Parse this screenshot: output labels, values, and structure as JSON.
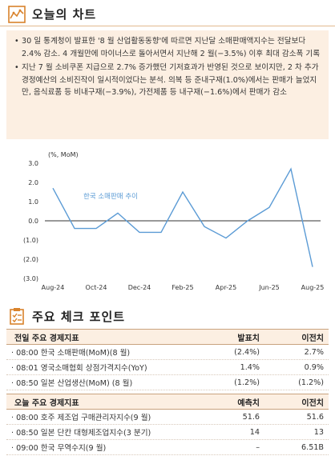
{
  "section1": {
    "title": "오늘의 차트",
    "icon": "line-chart-icon"
  },
  "paragraphs": [
    "30 일 통계청이 발표한 '8 월 산업활동동향'에 따르면 지난달 소매판매액지수는 전달보다 2.4% 감소. 4 개월만에 마이너스로 돌아서면서 지난해 2 월(−3.5%) 이후 최대 감소폭 기록",
    "지난 7 월 소비쿠폰 지급으로 2.7% 증가했던 기저효과가 반영된 것으로 보이지만, 2 차 추가경정예산의 소비진작이 일시적이었다는 분석. 의복 등 준내구재(1.0%)에서는 판매가 늘었지만, 음식료품 등 비내구재(−3.9%), 가전제품 등 내구재(−1.6%)에서 판매가 감소"
  ],
  "chart_data": {
    "type": "line",
    "unit_label": "(%, MoM)",
    "series": [
      {
        "name": "한국 소매판매 추이",
        "color": "#5b9bd5"
      }
    ],
    "x": [
      "Aug-24",
      "Sep-24",
      "Oct-24",
      "Nov-24",
      "Dec-24",
      "Jan-25",
      "Feb-25",
      "Mar-25",
      "Apr-25",
      "May-25",
      "Jun-25",
      "Jul-25",
      "Aug-25"
    ],
    "values": [
      1.7,
      -0.4,
      -0.4,
      0.4,
      -0.6,
      -0.6,
      1.5,
      -0.3,
      -0.9,
      0.0,
      0.7,
      2.7,
      -2.4
    ],
    "x_tick_labels": [
      "Aug-24",
      "Oct-24",
      "Dec-24",
      "Feb-25",
      "Apr-25",
      "Jun-25",
      "Aug-25"
    ],
    "y_tick_labels": [
      "3.0",
      "2.0",
      "1.0",
      "0.0",
      "(1.0)",
      "(2.0)",
      "(3.0)"
    ],
    "ylim": [
      -3,
      3
    ],
    "grid": false,
    "legend": "inside-top-left"
  },
  "section2": {
    "title": "주요 체크 포인트",
    "icon": "checklist-icon"
  },
  "table1": {
    "header": {
      "name": "전일 주요 경제지표",
      "v1": "발표치",
      "v2": "이전치"
    },
    "rows": [
      {
        "name": "· 08:00 한국 소매판매(MoM)(8 월)",
        "v1": "(2.4%)",
        "v2": "2.7%"
      },
      {
        "name": "· 08:01 영국소매협회 상점가격지수(YoY)",
        "v1": "1.4%",
        "v2": "0.9%"
      },
      {
        "name": "· 08:50 일본 산업생산(MoM) (8 월)",
        "v1": "(1.2%)",
        "v2": "(1.2%)"
      }
    ]
  },
  "table2": {
    "header": {
      "name": "오늘 주요 경제지표",
      "v1": "예측치",
      "v2": "이전치"
    },
    "rows": [
      {
        "name": "· 08:00 호주 제조업 구매관리자지수(9 월)",
        "v1": "51.6",
        "v2": "51.6"
      },
      {
        "name": "· 08:50 일본 단칸 대형제조업지수(3 분기)",
        "v1": "14",
        "v2": "13"
      },
      {
        "name": "· 09:00 한국 무역수지(9 월)",
        "v1": "–",
        "v2": "6.51B"
      }
    ]
  }
}
